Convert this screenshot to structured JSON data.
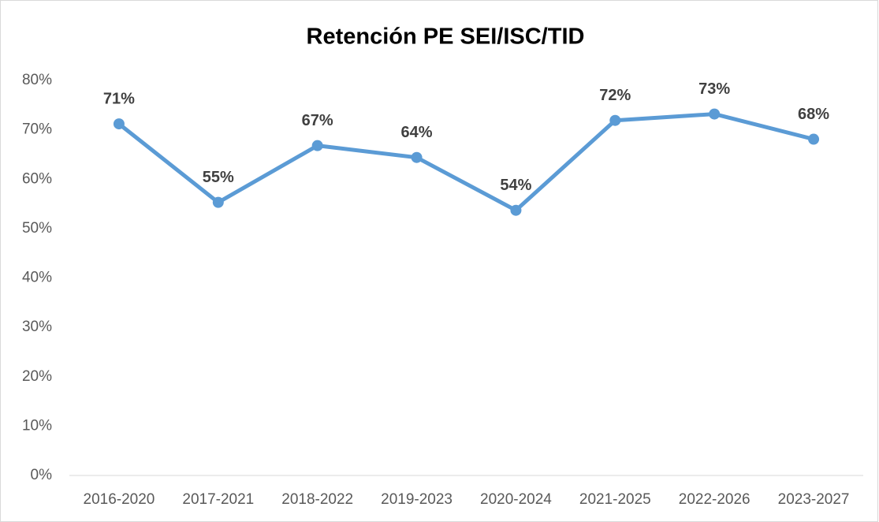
{
  "chart_data": {
    "type": "line",
    "title": "Retención PE SEI/ISC/TID",
    "categories": [
      "2016-2020",
      "2017-2021",
      "2018-2022",
      "2019-2023",
      "2020-2024",
      "2021-2025",
      "2022-2026",
      "2023-2027"
    ],
    "series": [
      {
        "name": "Retención",
        "color": "#5b9bd5",
        "values": [
          71.2,
          55.3,
          66.8,
          64.4,
          53.7,
          71.9,
          73.2,
          68.1
        ],
        "value_labels": [
          "71%",
          "55%",
          "67%",
          "64%",
          "54%",
          "72%",
          "73%",
          "68%"
        ]
      }
    ],
    "ylim": [
      0,
      80
    ],
    "yticks": [
      {
        "value": 0,
        "label": "0%"
      },
      {
        "value": 10,
        "label": "10%"
      },
      {
        "value": 20,
        "label": "20%"
      },
      {
        "value": 30,
        "label": "30%"
      },
      {
        "value": 40,
        "label": "40%"
      },
      {
        "value": 50,
        "label": "50%"
      },
      {
        "value": 60,
        "label": "60%"
      },
      {
        "value": 70,
        "label": "70%"
      },
      {
        "value": 80,
        "label": "80%"
      }
    ],
    "grid": false
  }
}
